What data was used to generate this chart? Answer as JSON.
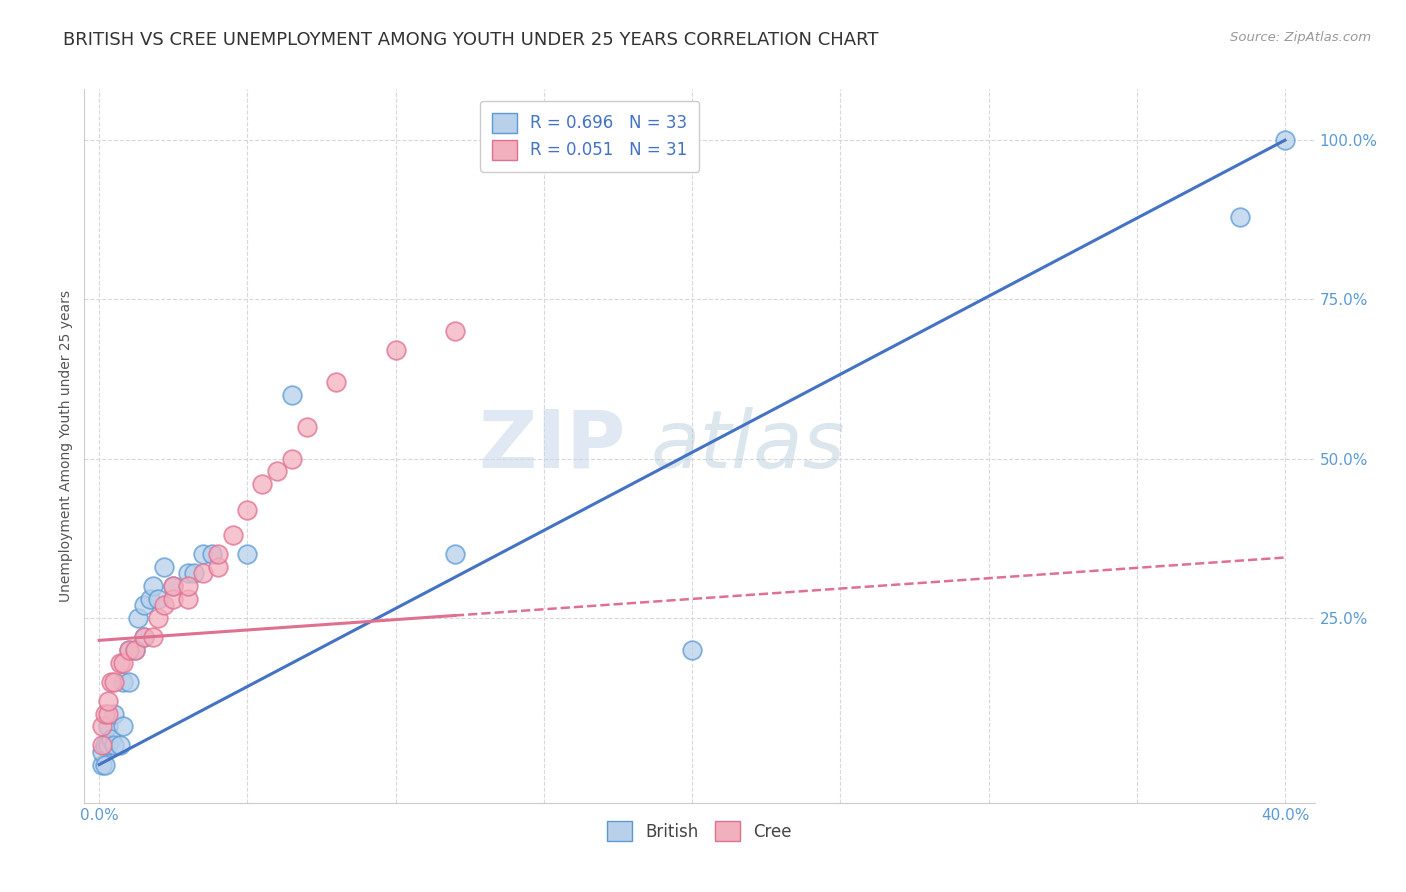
{
  "title": "BRITISH VS CREE UNEMPLOYMENT AMONG YOUTH UNDER 25 YEARS CORRELATION CHART",
  "source": "Source: ZipAtlas.com",
  "ylabel": "Unemployment Among Youth under 25 years",
  "xlabel": "",
  "xlim": [
    -0.005,
    0.41
  ],
  "ylim": [
    -0.04,
    1.08
  ],
  "xtick_positions": [
    0.0,
    0.4
  ],
  "xtick_labels": [
    "0.0%",
    "40.0%"
  ],
  "ytick_positions": [
    0.25,
    0.5,
    0.75,
    1.0
  ],
  "ytick_labels": [
    "25.0%",
    "50.0%",
    "75.0%",
    "100.0%"
  ],
  "x_grid_positions": [
    0.0,
    0.05,
    0.1,
    0.15,
    0.2,
    0.25,
    0.3,
    0.35,
    0.4
  ],
  "watermark_zip": "ZIP",
  "watermark_atlas": "atlas",
  "british_R": 0.696,
  "british_N": 33,
  "cree_R": 0.051,
  "cree_N": 31,
  "british_color": "#b8d0ea",
  "cree_color": "#f2b0bf",
  "british_edge_color": "#5b9bd5",
  "cree_edge_color": "#e07090",
  "british_line_color": "#4472c4",
  "cree_line_color": "#e07090",
  "british_scatter_x": [
    0.001,
    0.001,
    0.002,
    0.002,
    0.003,
    0.003,
    0.004,
    0.005,
    0.005,
    0.007,
    0.008,
    0.008,
    0.01,
    0.01,
    0.012,
    0.013,
    0.015,
    0.015,
    0.017,
    0.018,
    0.02,
    0.022,
    0.025,
    0.03,
    0.032,
    0.035,
    0.038,
    0.05,
    0.065,
    0.12,
    0.2,
    0.385,
    0.4
  ],
  "british_scatter_y": [
    0.02,
    0.04,
    0.02,
    0.05,
    0.05,
    0.08,
    0.06,
    0.05,
    0.1,
    0.05,
    0.08,
    0.15,
    0.15,
    0.2,
    0.2,
    0.25,
    0.22,
    0.27,
    0.28,
    0.3,
    0.28,
    0.33,
    0.3,
    0.32,
    0.32,
    0.35,
    0.35,
    0.35,
    0.6,
    0.35,
    0.2,
    0.88,
    1.0
  ],
  "cree_scatter_x": [
    0.001,
    0.001,
    0.002,
    0.003,
    0.003,
    0.004,
    0.005,
    0.007,
    0.008,
    0.01,
    0.012,
    0.015,
    0.018,
    0.02,
    0.022,
    0.025,
    0.025,
    0.03,
    0.03,
    0.035,
    0.04,
    0.04,
    0.045,
    0.05,
    0.055,
    0.06,
    0.065,
    0.07,
    0.08,
    0.1,
    0.12
  ],
  "cree_scatter_y": [
    0.05,
    0.08,
    0.1,
    0.1,
    0.12,
    0.15,
    0.15,
    0.18,
    0.18,
    0.2,
    0.2,
    0.22,
    0.22,
    0.25,
    0.27,
    0.28,
    0.3,
    0.28,
    0.3,
    0.32,
    0.33,
    0.35,
    0.38,
    0.42,
    0.46,
    0.48,
    0.5,
    0.55,
    0.62,
    0.67,
    0.7
  ],
  "british_trendline_x": [
    0.0,
    0.4
  ],
  "british_trendline_y": [
    0.02,
    1.0
  ],
  "cree_trendline_x": [
    0.0,
    0.4
  ],
  "cree_trendline_y": [
    0.215,
    0.345
  ],
  "background_color": "#ffffff",
  "grid_color": "#d8d8d8",
  "title_fontsize": 13,
  "axis_label_fontsize": 10,
  "tick_fontsize": 11,
  "legend_fontsize": 12,
  "scatter_size": 180
}
